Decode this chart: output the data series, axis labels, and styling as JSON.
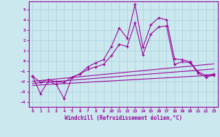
{
  "xlabel": "Windchill (Refroidissement éolien,°C)",
  "background_color": "#cce8ef",
  "grid_color": "#b0d8e0",
  "line_color": "#990099",
  "xlim": [
    -0.5,
    23.5
  ],
  "ylim": [
    -4.5,
    5.8
  ],
  "xticks": [
    0,
    1,
    2,
    3,
    4,
    5,
    6,
    7,
    8,
    9,
    10,
    11,
    12,
    13,
    14,
    15,
    16,
    17,
    18,
    19,
    20,
    21,
    22,
    23
  ],
  "yticks": [
    -4,
    -3,
    -2,
    -1,
    0,
    1,
    2,
    3,
    4,
    5
  ],
  "series1_x": [
    0,
    1,
    2,
    3,
    4,
    5,
    6,
    7,
    8,
    9,
    10,
    11,
    12,
    13,
    14,
    15,
    16,
    17,
    18,
    19,
    20,
    21,
    22,
    23
  ],
  "series1_y": [
    -1.5,
    -3.2,
    -2.0,
    -2.3,
    -3.7,
    -1.6,
    -1.3,
    -0.6,
    -0.2,
    0.1,
    1.4,
    3.2,
    2.2,
    5.5,
    1.3,
    3.5,
    4.2,
    4.0,
    0.2,
    0.1,
    -0.1,
    -1.1,
    -1.4,
    -1.3
  ],
  "series2_x": [
    0,
    1,
    2,
    3,
    4,
    5,
    6,
    7,
    8,
    9,
    10,
    11,
    12,
    13,
    14,
    15,
    16,
    17,
    18,
    19,
    20,
    21,
    22,
    23
  ],
  "series2_y": [
    -1.5,
    -2.1,
    -1.85,
    -2.05,
    -2.1,
    -1.6,
    -1.3,
    -0.85,
    -0.6,
    -0.35,
    0.5,
    1.6,
    1.4,
    3.7,
    0.6,
    2.6,
    3.3,
    3.4,
    -0.35,
    -0.1,
    -0.2,
    -1.2,
    -1.6,
    -1.4
  ],
  "line1_x": [
    0,
    23
  ],
  "line1_y": [
    -2.0,
    -0.3
  ],
  "line2_x": [
    0,
    23
  ],
  "line2_y": [
    -2.2,
    -0.8
  ],
  "line3_x": [
    0,
    23
  ],
  "line3_y": [
    -2.4,
    -1.4
  ]
}
